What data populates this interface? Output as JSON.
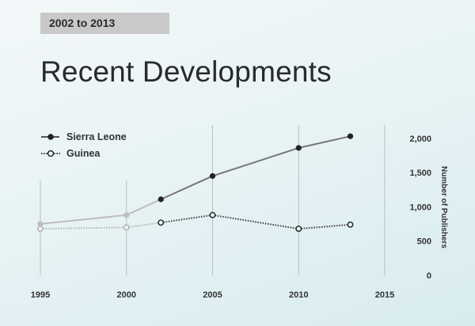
{
  "header": {
    "badge": "2002 to 2013",
    "title": "Recent Developments"
  },
  "legend": [
    {
      "name": "Sierra Leone",
      "marker": "filled-circle",
      "line": "solid"
    },
    {
      "name": "Guinea",
      "marker": "open-circle",
      "line": "dotted"
    }
  ],
  "colors": {
    "background": "#e8f3f5",
    "sierra_leone": "#777777",
    "sierra_leone_faded": "#bdbdbd",
    "marker_dark": "#222222",
    "guinea": "#444444",
    "guinea_faded": "#b5b5b5",
    "gridline": "#b8bec0",
    "badge_bg": "#c9c9c9"
  },
  "chart_data": {
    "type": "line",
    "title": "Recent Developments",
    "subtitle": "2002 to 2013",
    "xlabel": "",
    "ylabel": "Number of Publishers",
    "x_ticks": [
      "1995",
      "2000",
      "2005",
      "2010",
      "2015"
    ],
    "y_ticks": [
      "0",
      "500",
      "1,000",
      "1,500",
      "2,000"
    ],
    "xlim": [
      1995,
      2015
    ],
    "ylim": [
      0,
      2000
    ],
    "grid": "vertical lines at x ticks",
    "legend_position": "top-left",
    "highlighted_range": [
      2002,
      2013
    ],
    "x": [
      1995,
      2000,
      2002,
      2005,
      2010,
      2013
    ],
    "series": [
      {
        "name": "Sierra Leone",
        "values": [
          750,
          880,
          1110,
          1450,
          1860,
          2030
        ]
      },
      {
        "name": "Guinea",
        "values": [
          680,
          700,
          770,
          880,
          680,
          740
        ]
      }
    ]
  }
}
